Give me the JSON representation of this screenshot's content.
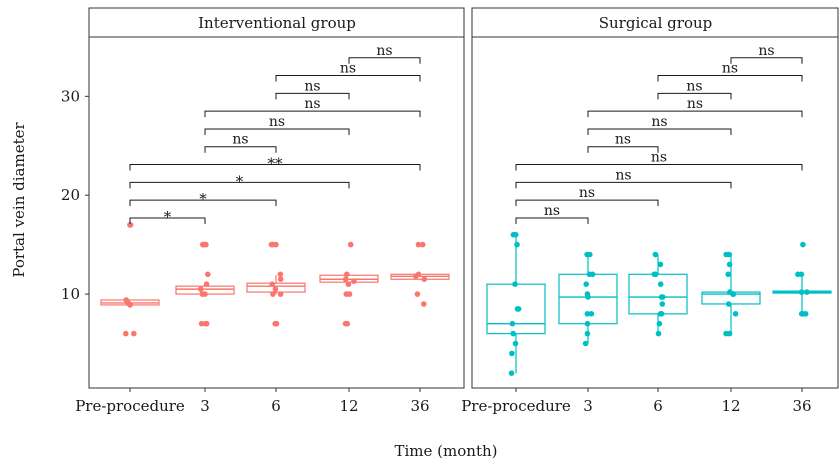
{
  "chart_data": {
    "type": "box",
    "xlabel": "Time (month)",
    "ylabel": "Portal vein diameter",
    "ylim": [
      0.5,
      36
    ],
    "y_ticks": [
      10,
      20,
      30
    ],
    "x_categories": [
      "Pre-procedure",
      "3",
      "6",
      "12",
      "36"
    ],
    "grid": false,
    "legend": "none",
    "panels": [
      {
        "title": "Interventional group",
        "color": "#f8766d",
        "boxes": [
          {
            "category": "Pre-procedure",
            "min": 8.9,
            "q1": 8.9,
            "median": 9.1,
            "q3": 9.4,
            "max": 9.4
          },
          {
            "category": "3",
            "min": 10.0,
            "q1": 10.0,
            "median": 10.5,
            "q3": 10.8,
            "max": 10.8
          },
          {
            "category": "6",
            "min": 10.0,
            "q1": 10.2,
            "median": 10.8,
            "q3": 11.1,
            "max": 11.9
          },
          {
            "category": "12",
            "min": 11.1,
            "q1": 11.2,
            "median": 11.5,
            "q3": 11.9,
            "max": 11.9
          },
          {
            "category": "36",
            "min": 11.4,
            "q1": 11.5,
            "median": 11.8,
            "q3": 12.0,
            "max": 12.0
          }
        ],
        "points": [
          {
            "category": "Pre-procedure",
            "values": [
              17,
              17,
              9.4,
              9.2,
              9.0,
              8.9,
              6,
              6
            ]
          },
          {
            "category": "3",
            "values": [
              15,
              15,
              15,
              12,
              11,
              10.5,
              10,
              10,
              7,
              7,
              7
            ]
          },
          {
            "category": "6",
            "values": [
              15,
              15,
              15,
              12,
              11.5,
              11,
              10.5,
              10,
              10,
              7,
              7
            ]
          },
          {
            "category": "12",
            "values": [
              15,
              12,
              11.5,
              11.3,
              11,
              10,
              10,
              7,
              7
            ]
          },
          {
            "category": "36",
            "values": [
              15,
              15,
              12,
              11.8,
              11.5,
              10,
              9
            ]
          }
        ],
        "brackets": [
          {
            "from": "Pre-procedure",
            "to": "3",
            "y": 17.7,
            "label": "*"
          },
          {
            "from": "Pre-procedure",
            "to": "6",
            "y": 19.5,
            "label": "*"
          },
          {
            "from": "Pre-procedure",
            "to": "12",
            "y": 21.3,
            "label": "*"
          },
          {
            "from": "Pre-procedure",
            "to": "36",
            "y": 23.1,
            "label": "**"
          },
          {
            "from": "3",
            "to": "6",
            "y": 24.9,
            "label": "ns"
          },
          {
            "from": "3",
            "to": "12",
            "y": 26.7,
            "label": "ns"
          },
          {
            "from": "3",
            "to": "36",
            "y": 28.5,
            "label": "ns"
          },
          {
            "from": "6",
            "to": "12",
            "y": 30.3,
            "label": "ns"
          },
          {
            "from": "6",
            "to": "36",
            "y": 32.1,
            "label": "ns"
          },
          {
            "from": "12",
            "to": "36",
            "y": 33.9,
            "label": "ns"
          }
        ]
      },
      {
        "title": "Surgical group",
        "color": "#00bfc4",
        "boxes": [
          {
            "category": "Pre-procedure",
            "min": 2,
            "q1": 6.0,
            "median": 7.0,
            "q3": 11.0,
            "max": 16
          },
          {
            "category": "3",
            "min": 5,
            "q1": 7.0,
            "median": 9.7,
            "q3": 12.0,
            "max": 14
          },
          {
            "category": "6",
            "min": 6,
            "q1": 8.0,
            "median": 9.7,
            "q3": 12.0,
            "max": 14
          },
          {
            "category": "12",
            "min": 6,
            "q1": 9.0,
            "median": 10.0,
            "q3": 10.2,
            "max": 14
          },
          {
            "category": "36",
            "min": 8,
            "q1": 10.1,
            "median": 10.2,
            "q3": 10.3,
            "max": 12
          }
        ],
        "points": [
          {
            "category": "Pre-procedure",
            "values": [
              16,
              16,
              15,
              11,
              8.5,
              8.5,
              7,
              6,
              5,
              4,
              2
            ]
          },
          {
            "category": "3",
            "values": [
              14,
              14,
              12,
              12,
              11,
              10,
              9.7,
              8,
              8,
              7,
              6,
              5
            ]
          },
          {
            "category": "6",
            "values": [
              14,
              13,
              12,
              12,
              11,
              9.7,
              9.7,
              9,
              8,
              8,
              7,
              6
            ]
          },
          {
            "category": "12",
            "values": [
              14,
              14,
              13,
              12,
              10.2,
              10,
              10,
              9,
              8,
              6,
              6
            ]
          },
          {
            "category": "36",
            "values": [
              15,
              12,
              12,
              10.2,
              10.2,
              8,
              8,
              8
            ]
          }
        ],
        "brackets": [
          {
            "from": "Pre-procedure",
            "to": "3",
            "y": 17.7,
            "label": "ns"
          },
          {
            "from": "Pre-procedure",
            "to": "6",
            "y": 19.5,
            "label": "ns"
          },
          {
            "from": "Pre-procedure",
            "to": "12",
            "y": 21.3,
            "label": "ns"
          },
          {
            "from": "Pre-procedure",
            "to": "36",
            "y": 23.1,
            "label": "ns"
          },
          {
            "from": "3",
            "to": "6",
            "y": 24.9,
            "label": "ns"
          },
          {
            "from": "3",
            "to": "12",
            "y": 26.7,
            "label": "ns"
          },
          {
            "from": "3",
            "to": "36",
            "y": 28.5,
            "label": "ns"
          },
          {
            "from": "6",
            "to": "12",
            "y": 30.3,
            "label": "ns"
          },
          {
            "from": "6",
            "to": "36",
            "y": 32.1,
            "label": "ns"
          },
          {
            "from": "12",
            "to": "36",
            "y": 33.9,
            "label": "ns"
          }
        ]
      }
    ]
  }
}
